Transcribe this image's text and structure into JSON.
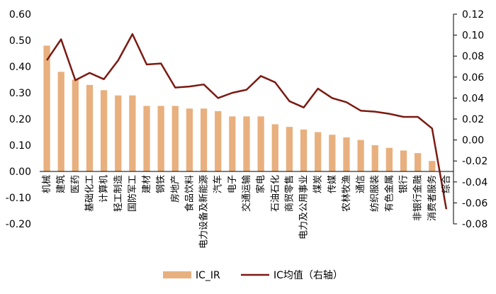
{
  "chart_data": {
    "type": "bar+line",
    "categories": [
      "机械",
      "建筑",
      "医药",
      "基础化工",
      "计算机",
      "轻工制造",
      "国防军工",
      "建材",
      "钢铁",
      "房地产",
      "食品饮料",
      "电力设备及新能源",
      "汽车",
      "电子",
      "交通运输",
      "家电",
      "石油石化",
      "商贸零售",
      "电力及公用事业",
      "煤炭",
      "传媒",
      "农林牧渔",
      "通信",
      "纺织服装",
      "有色金属",
      "银行",
      "非银行金融",
      "消费者服务",
      "综合"
    ],
    "series": [
      {
        "name": "IC_IR",
        "type": "bar",
        "axis": "left",
        "color": "#E8B07E",
        "values": [
          0.48,
          0.38,
          0.35,
          0.33,
          0.31,
          0.29,
          0.29,
          0.25,
          0.25,
          0.25,
          0.24,
          0.24,
          0.23,
          0.21,
          0.21,
          0.21,
          0.18,
          0.17,
          0.16,
          0.15,
          0.14,
          0.13,
          0.12,
          0.1,
          0.09,
          0.08,
          0.07,
          0.04,
          0.0
        ]
      },
      {
        "name": "IC均值（右轴）",
        "type": "line",
        "axis": "right",
        "color": "#7B1A12",
        "values": [
          0.076,
          0.096,
          0.057,
          0.064,
          0.058,
          0.076,
          0.101,
          0.072,
          0.073,
          0.05,
          0.051,
          0.053,
          0.04,
          0.045,
          0.048,
          0.061,
          0.055,
          0.037,
          0.031,
          0.049,
          0.04,
          0.036,
          0.028,
          0.027,
          0.025,
          0.022,
          0.022,
          0.011,
          -0.066
        ]
      }
    ],
    "y_left": {
      "min": -0.2,
      "max": 0.6,
      "step": 0.1,
      "ticks": [
        "-0.20",
        "-0.10",
        "0.00",
        "0.10",
        "0.20",
        "0.30",
        "0.40",
        "0.50",
        "0.60"
      ]
    },
    "y_right": {
      "min": -0.08,
      "max": 0.12,
      "step": 0.02,
      "ticks": [
        "-0.08",
        "-0.06",
        "-0.04",
        "-0.02",
        "0.00",
        "0.02",
        "0.04",
        "0.06",
        "0.08",
        "0.10",
        "0.12"
      ]
    },
    "grid": false,
    "legend_position": "bottom"
  }
}
